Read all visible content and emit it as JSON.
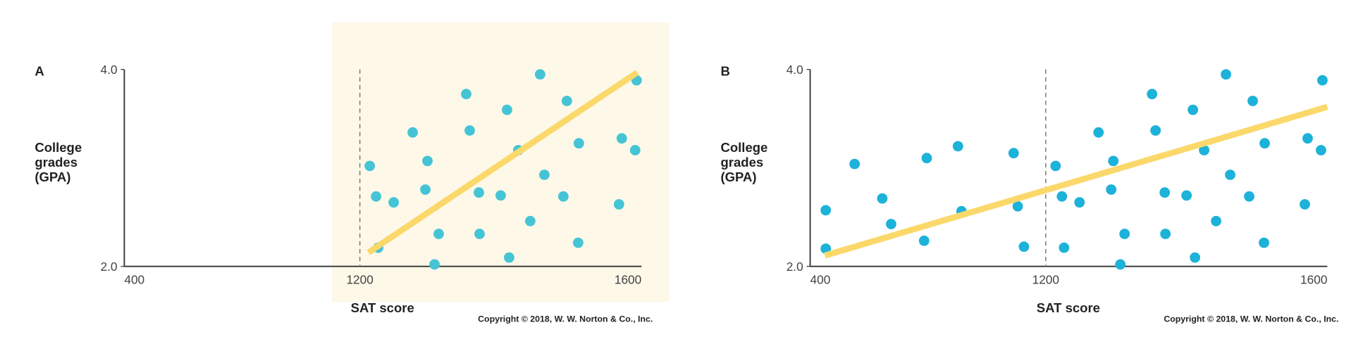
{
  "chart_data": [
    {
      "type": "scatter",
      "panel_label": "A",
      "x": [
        1214,
        1223,
        1226,
        1248,
        1275,
        1296,
        1293,
        1312,
        1306,
        1351,
        1356,
        1369,
        1370,
        1400,
        1409,
        1412,
        1425,
        1442,
        1456,
        1462,
        1489,
        1494,
        1510,
        1511,
        1568,
        1572,
        1591,
        1593
      ],
      "values": [
        3.02,
        2.71,
        2.19,
        2.65,
        3.36,
        3.07,
        2.78,
        2.33,
        2.02,
        3.75,
        3.38,
        2.75,
        2.33,
        2.72,
        3.59,
        2.09,
        3.18,
        2.46,
        3.95,
        2.93,
        2.71,
        3.68,
        2.24,
        3.25,
        2.63,
        3.3,
        3.18,
        3.89
      ],
      "color": "#45c4d6",
      "trend": {
        "x": [
          1212,
          1594
        ],
        "values": [
          2.14,
          3.97
        ],
        "color": "#fbd86a"
      },
      "xlim": [
        400,
        1600
      ],
      "ylim": [
        2,
        4
      ],
      "xticks": [
        400,
        1200,
        1600
      ],
      "yticks": [
        {
          "value": 2,
          "label": "2.0"
        },
        {
          "value": 4,
          "label": "4.0"
        }
      ],
      "xlabel": "SAT score",
      "ylabel": [
        "College",
        "grades",
        "(GPA)"
      ],
      "copyright": "Copyright © 2018, W. W. Norton & Co., Inc."
    },
    {
      "type": "scatter",
      "panel_label": "B",
      "x": [
        453,
        453,
        551,
        645,
        675,
        796,
        787,
        902,
        914,
        1091,
        1105,
        1126,
        1214,
        1223,
        1226,
        1248,
        1275,
        1296,
        1293,
        1312,
        1306,
        1351,
        1356,
        1369,
        1370,
        1400,
        1409,
        1412,
        1425,
        1442,
        1456,
        1462,
        1489,
        1494,
        1510,
        1511,
        1568,
        1572,
        1591,
        1593
      ],
      "values": [
        2.57,
        2.18,
        3.04,
        2.69,
        2.43,
        3.1,
        2.26,
        3.22,
        2.56,
        3.15,
        2.61,
        2.2,
        3.02,
        2.71,
        2.19,
        2.65,
        3.36,
        3.07,
        2.78,
        2.33,
        2.02,
        3.75,
        3.38,
        2.75,
        2.33,
        2.72,
        3.59,
        2.09,
        3.18,
        2.46,
        3.95,
        2.93,
        2.71,
        3.68,
        2.24,
        3.25,
        2.63,
        3.3,
        3.18,
        3.89
      ],
      "color": "#1cb2d9",
      "trend": {
        "x": [
          450,
          1600
        ],
        "values": [
          2.11,
          3.62
        ],
        "color": "#fbd86a"
      },
      "xlim": [
        400,
        1600
      ],
      "ylim": [
        2,
        4
      ],
      "xticks": [
        400,
        1200,
        1600
      ],
      "yticks": [
        {
          "value": 2,
          "label": "2.0"
        },
        {
          "value": 4,
          "label": "4.0"
        }
      ],
      "xlabel": "SAT score",
      "ylabel": [
        "College",
        "grades",
        "(GPA)"
      ],
      "copyright": "Copyright © 2018, W. W. Norton & Co., Inc."
    }
  ]
}
